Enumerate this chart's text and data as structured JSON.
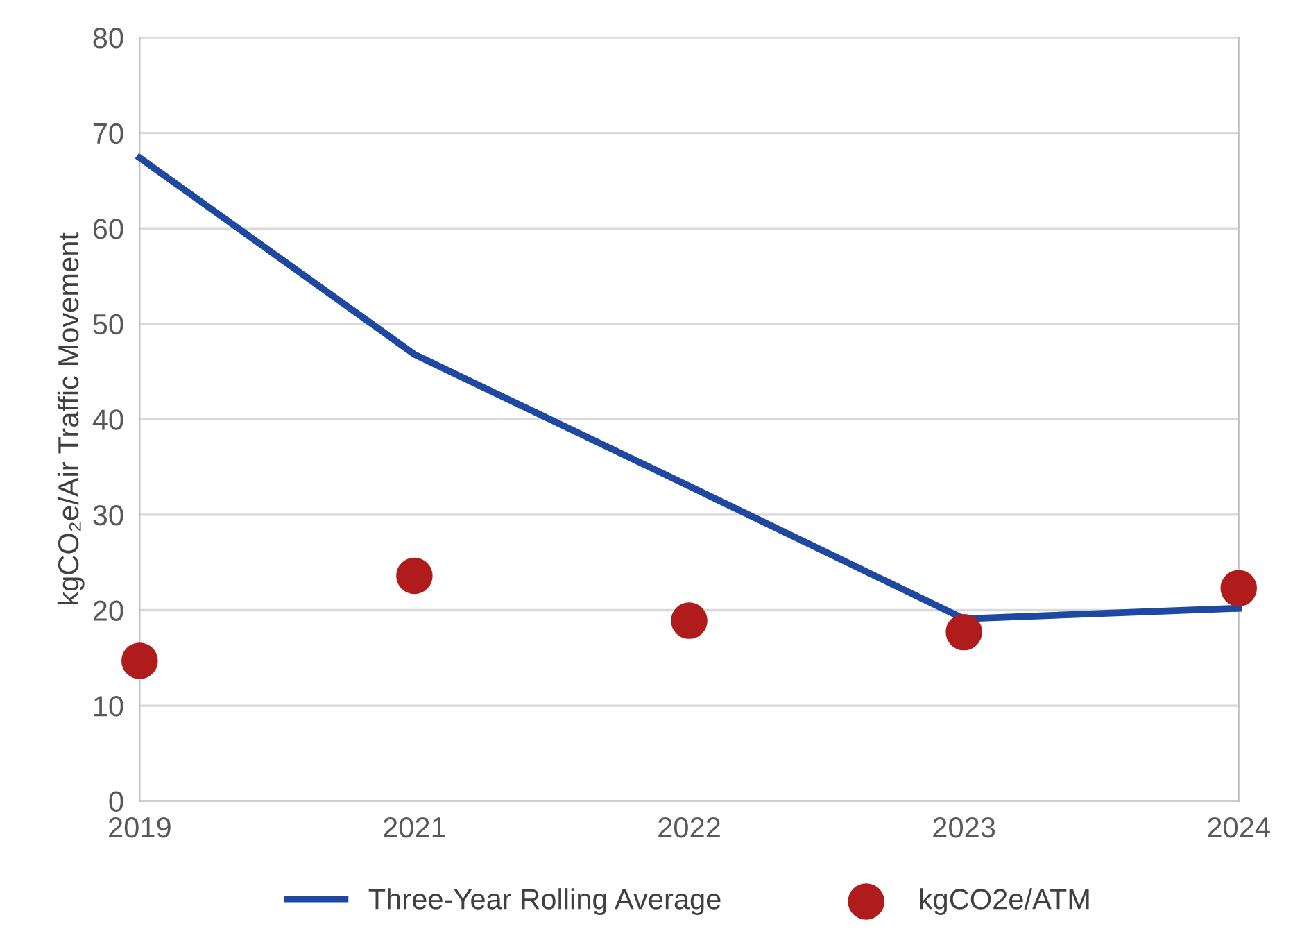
{
  "chart_data": {
    "type": "line",
    "ylabel": "kgCO₂e/Air Traffic Movement",
    "categories": [
      "2019",
      "2021",
      "2022",
      "2023",
      "2024"
    ],
    "series": [
      {
        "name": "Three-Year Rolling Average",
        "color": "#1f48a0",
        "values": [
          67.4,
          46.8,
          33.0,
          19.1,
          20.2
        ]
      },
      {
        "name": "kgCO2e/ATM",
        "type": "scatter",
        "color": "#b01c1c",
        "values": [
          14.7,
          23.6,
          18.9,
          17.7,
          22.3
        ]
      }
    ],
    "ylim": [
      0,
      80
    ],
    "yticks": [
      0,
      10,
      20,
      30,
      40,
      50,
      60,
      70,
      80
    ],
    "grid": "y",
    "legend": "bottom"
  }
}
